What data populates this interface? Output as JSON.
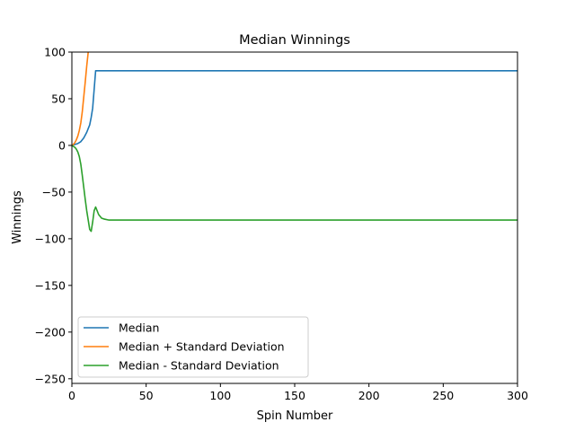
{
  "chart_data": {
    "type": "line",
    "title": "Median Winnings",
    "xlabel": "Spin Number",
    "ylabel": "Winnings",
    "xlim": [
      0,
      300
    ],
    "ylim": [
      -255,
      100
    ],
    "xticks": [
      0,
      50,
      100,
      150,
      200,
      250,
      300
    ],
    "yticks": [
      100,
      50,
      0,
      -50,
      -100,
      -150,
      -200,
      -250
    ],
    "grid": false,
    "legend_position": "lower-left",
    "series": [
      {
        "name": "Median",
        "color": "#1f77b4",
        "x": [
          0,
          2,
          4,
          6,
          8,
          10,
          11,
          12,
          13,
          14,
          15,
          16,
          18,
          20,
          50,
          100,
          150,
          200,
          250,
          300
        ],
        "y": [
          0,
          1,
          2,
          4,
          8,
          14,
          18,
          22,
          30,
          40,
          60,
          80,
          80,
          80,
          80,
          80,
          80,
          80,
          80,
          80
        ]
      },
      {
        "name": "Median + Standard Deviation",
        "color": "#ff7f0e",
        "x": [
          0,
          1,
          2,
          3,
          4,
          5,
          6,
          7,
          8,
          9,
          10,
          11
        ],
        "y": [
          0,
          1,
          3,
          6,
          10,
          16,
          24,
          36,
          52,
          68,
          85,
          100
        ]
      },
      {
        "name": "Median - Standard Deviation",
        "color": "#2ca02c",
        "x": [
          0,
          2,
          3,
          4,
          5,
          6,
          7,
          8,
          9,
          10,
          11,
          12,
          13,
          14,
          15,
          16,
          17,
          18,
          20,
          22,
          25,
          30,
          50,
          100,
          150,
          200,
          250,
          300
        ],
        "y": [
          0,
          -2,
          -4,
          -7,
          -12,
          -20,
          -32,
          -45,
          -58,
          -70,
          -80,
          -90,
          -92,
          -82,
          -70,
          -66,
          -70,
          -74,
          -78,
          -79,
          -80,
          -80,
          -80,
          -80,
          -80,
          -80,
          -80,
          -80
        ]
      }
    ]
  }
}
